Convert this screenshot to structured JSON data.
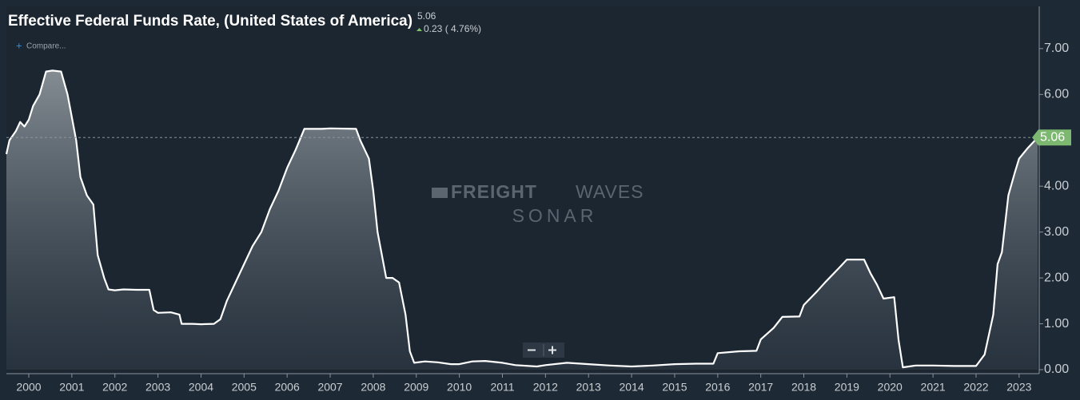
{
  "title": "Effective Federal Funds Rate, (United States of America)",
  "change": "0.23 ( 4.76%)",
  "compare_button": "Compare...",
  "watermark": {
    "bold": "FREIGHT",
    "light": "WAVES",
    "sub": "SONAR"
  },
  "chart_data": {
    "type": "line",
    "last_value": 5.06,
    "color": "#ffffff",
    "x": [
      1999.48,
      1999.55,
      1999.7,
      1999.8,
      1999.9,
      2000.0,
      2000.1,
      2000.25,
      2000.4,
      2000.55,
      2000.75,
      2000.9,
      2001.0,
      2001.1,
      2001.2,
      2001.35,
      2001.5,
      2001.6,
      2001.75,
      2001.85,
      2002.0,
      2002.2,
      2002.5,
      2002.8,
      2002.9,
      2003.0,
      2003.3,
      2003.5,
      2003.55,
      2003.8,
      2004.0,
      2004.3,
      2004.45,
      2004.6,
      2004.9,
      2005.0,
      2005.2,
      2005.4,
      2005.6,
      2005.8,
      2006.0,
      2006.2,
      2006.4,
      2006.8,
      2007.0,
      2007.6,
      2007.7,
      2007.9,
      2008.0,
      2008.1,
      2008.3,
      2008.45,
      2008.6,
      2008.75,
      2008.85,
      2008.95,
      2009.2,
      2009.5,
      2009.8,
      2010.0,
      2010.3,
      2010.6,
      2011.0,
      2011.3,
      2011.8,
      2012.0,
      2012.5,
      2013.0,
      2013.5,
      2014.0,
      2014.5,
      2015.0,
      2015.5,
      2015.9,
      2016.0,
      2016.5,
      2016.9,
      2017.0,
      2017.3,
      2017.5,
      2017.9,
      2018.0,
      2018.3,
      2018.5,
      2018.8,
      2019.0,
      2019.4,
      2019.55,
      2019.7,
      2019.85,
      2020.1,
      2020.2,
      2020.3,
      2020.6,
      2021.0,
      2021.5,
      2021.9,
      2022.0,
      2022.2,
      2022.4,
      2022.5,
      2022.6,
      2022.75,
      2022.9,
      2023.0,
      2023.2,
      2023.43
    ],
    "values": [
      4.7,
      5.0,
      5.2,
      5.4,
      5.3,
      5.45,
      5.75,
      6.0,
      6.5,
      6.52,
      6.5,
      6.0,
      5.5,
      5.0,
      4.2,
      3.8,
      3.6,
      2.5,
      2.0,
      1.75,
      1.73,
      1.75,
      1.74,
      1.74,
      1.3,
      1.24,
      1.25,
      1.2,
      1.0,
      1.0,
      0.99,
      1.0,
      1.1,
      1.5,
      2.1,
      2.3,
      2.7,
      3.0,
      3.5,
      3.9,
      4.4,
      4.8,
      5.25,
      5.25,
      5.26,
      5.25,
      5.0,
      4.6,
      3.9,
      3.0,
      2.0,
      2.0,
      1.9,
      1.2,
      0.4,
      0.15,
      0.18,
      0.16,
      0.12,
      0.12,
      0.18,
      0.19,
      0.15,
      0.1,
      0.07,
      0.1,
      0.15,
      0.12,
      0.09,
      0.07,
      0.09,
      0.12,
      0.13,
      0.13,
      0.36,
      0.4,
      0.41,
      0.66,
      0.91,
      1.15,
      1.16,
      1.41,
      1.7,
      1.91,
      2.2,
      2.4,
      2.4,
      2.1,
      1.85,
      1.55,
      1.58,
      0.65,
      0.05,
      0.09,
      0.09,
      0.08,
      0.08,
      0.08,
      0.33,
      1.2,
      2.3,
      2.56,
      3.8,
      4.3,
      4.6,
      4.83,
      5.06
    ],
    "xlim": [
      1999.48,
      2023.43
    ],
    "xticks": [
      2000,
      2001,
      2002,
      2003,
      2004,
      2005,
      2006,
      2007,
      2008,
      2009,
      2010,
      2011,
      2012,
      2013,
      2014,
      2015,
      2016,
      2017,
      2018,
      2019,
      2020,
      2021,
      2022,
      2023
    ],
    "ylim": [
      0,
      7.92
    ],
    "yticks": [
      {
        "value": 0,
        "label": "0.00"
      },
      {
        "value": 1,
        "label": "1.00"
      },
      {
        "value": 2,
        "label": "2.00"
      },
      {
        "value": 3,
        "label": "3.00"
      },
      {
        "value": 4,
        "label": "4.00"
      },
      {
        "value": 5,
        "label": "5.00"
      },
      {
        "value": 6,
        "label": "6.00"
      },
      {
        "value": 7,
        "label": "7.00"
      }
    ]
  }
}
